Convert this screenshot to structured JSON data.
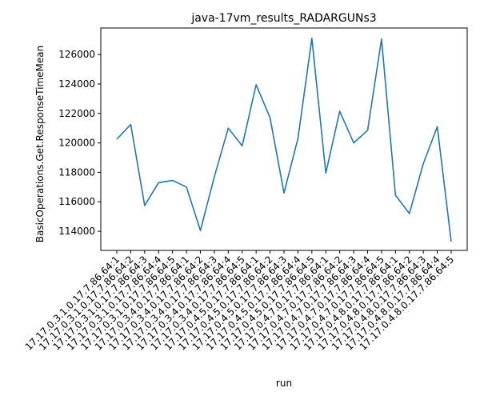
{
  "chart_data": {
    "type": "line",
    "title": "java-17vm_results_RADARGUNs3",
    "xlabel": "run",
    "ylabel": "BasicOperations.Get.ResponseTimeMean",
    "categories": [
      "17.17.0.3.1.0.17.7.86.64:1",
      "17.17.0.3.1.0.17.7.86.64:2",
      "17.17.0.3.1.0.17.7.86.64:3",
      "17.17.0.3.1.0.17.7.86.64:4",
      "17.17.0.3.1.0.17.7.86.64:5",
      "17.17.0.3.4.0.17.7.86.64:1",
      "17.17.0.3.4.0.17.7.86.64:2",
      "17.17.0.3.4.0.17.7.86.64:3",
      "17.17.0.3.4.0.17.7.86.64:4",
      "17.17.0.3.4.0.17.7.86.64:5",
      "17.17.0.4.5.0.17.7.86.64:1",
      "17.17.0.4.5.0.17.7.86.64:2",
      "17.17.0.4.5.0.17.7.86.64:3",
      "17.17.0.4.5.0.17.7.86.64:4",
      "17.17.0.4.5.0.17.7.86.64:5",
      "17.17.0.4.7.0.17.7.86.64:1",
      "17.17.0.4.7.0.17.7.86.64:2",
      "17.17.0.4.7.0.17.7.86.64:3",
      "17.17.0.4.7.0.17.7.86.64:4",
      "17.17.0.4.7.0.17.7.86.64:5",
      "17.17.0.4.8.0.17.7.86.64:1",
      "17.17.0.4.8.0.17.7.86.64:2",
      "17.17.0.4.8.0.17.7.86.64:3",
      "17.17.0.4.8.0.17.7.86.64:4",
      "17.17.0.4.8.0.17.7.86.64:5"
    ],
    "series": [
      {
        "values": [
          120250,
          121250,
          115750,
          117300,
          117450,
          117000,
          114050,
          117700,
          121000,
          119800,
          123950,
          121700,
          116600,
          120300,
          127100,
          117950,
          122150,
          120000,
          120850,
          127050,
          116450,
          115200,
          118600,
          121100,
          113300
        ],
        "color": "#1f77b4"
      }
    ],
    "ylim": [
      112700,
      127800
    ],
    "yticks": [
      114000,
      116000,
      118000,
      120000,
      122000,
      124000,
      126000
    ],
    "ytick_labels": [
      "114000",
      "116000",
      "118000",
      "120000",
      "122000",
      "124000",
      "126000"
    ],
    "grid": false,
    "legend": "none"
  }
}
